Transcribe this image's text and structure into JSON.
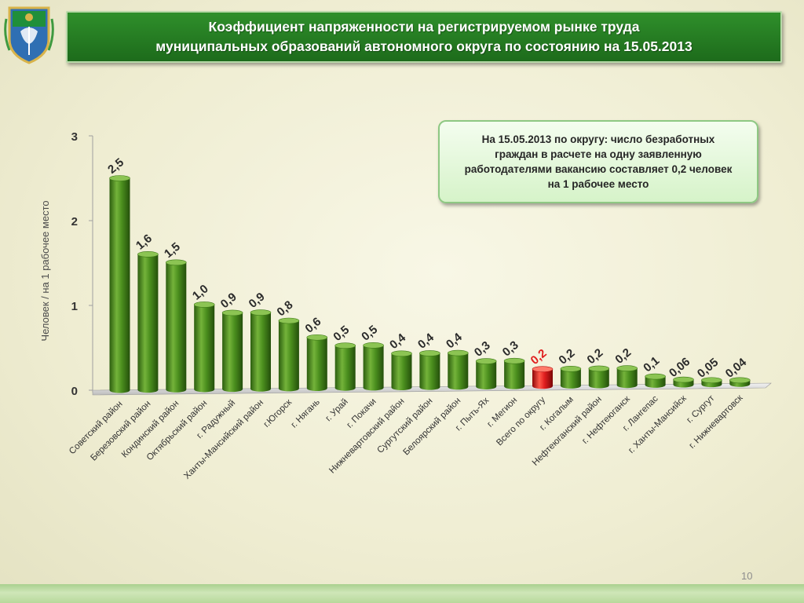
{
  "slide": {
    "title_line1": "Коэффициент напряженности на регистрируемом рынке труда",
    "title_line2": "муниципальных образований автономного округа по состоянию на 15.05.2013",
    "callout_lines": [
      "На 15.05.2013 по округу: число безработных",
      "граждан в расчете на одну заявленную",
      "работодателями вакансию составляет 0,2 человек",
      "на 1 рабочее место"
    ],
    "page_number": "10",
    "emblem_icon": "khmao-coat-of-arms-icon"
  },
  "colors": {
    "bar_green": "#4a8f1f",
    "bar_highlight": "#e01e1e",
    "banner_green": "#22771f",
    "label_highlight": "#e01e1e"
  },
  "chart_data": {
    "type": "bar",
    "title": "",
    "xlabel": "",
    "ylabel": "Человек / на 1 рабочее место",
    "ylim": [
      0,
      3
    ],
    "yticks": [
      "0",
      "1",
      "2",
      "3"
    ],
    "grid": false,
    "categories": [
      "Советский район",
      "Березовский район",
      "Кондинский район",
      "Октябрьский район",
      "г. Радужный",
      "Ханты-Мансийский район",
      "г.Югорск",
      "г. Нягань",
      "г. Урай",
      "г. Покачи",
      "Нижневартовский район",
      "Сургутский район",
      "Белоярский район",
      "г. Пыть-Ях",
      "г. Мегион",
      "Всего по округу",
      "г. Когалым",
      "Нефтеюганский район",
      "г. Нефтеюганск",
      "г. Лангепас",
      "г. Ханты-Мансийск",
      "г. Сургут",
      "г. Нижневартовск"
    ],
    "values": [
      2.5,
      1.6,
      1.5,
      1.0,
      0.9,
      0.9,
      0.8,
      0.6,
      0.5,
      0.5,
      0.4,
      0.4,
      0.4,
      0.3,
      0.3,
      0.2,
      0.2,
      0.2,
      0.2,
      0.1,
      0.06,
      0.05,
      0.04
    ],
    "value_labels": [
      "2,5",
      "1,6",
      "1,5",
      "1,0",
      "0,9",
      "0,9",
      "0,8",
      "0,6",
      "0,5",
      "0,5",
      "0,4",
      "0,4",
      "0,4",
      "0,3",
      "0,3",
      "0,2",
      "0,2",
      "0,2",
      "0,2",
      "0,1",
      "0,06",
      "0,05",
      "0,04"
    ],
    "highlight_category": "Всего по округу"
  }
}
